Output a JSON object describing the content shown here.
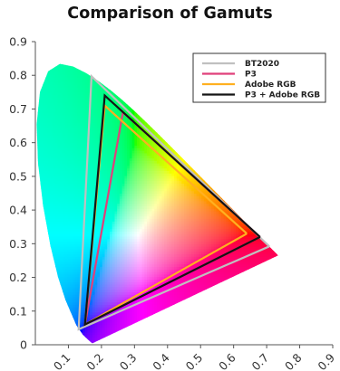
{
  "chart_data": {
    "type": "line",
    "title": "Comparison of Gamuts",
    "xlabel": "",
    "ylabel": "",
    "xlim": [
      0,
      0.9
    ],
    "ylim": [
      0,
      0.9
    ],
    "x_ticks": [
      "0",
      "0.1",
      "0.2",
      "0.3",
      "0.4",
      "0.5",
      "0.6",
      "0.7",
      "0.8",
      "0.9"
    ],
    "y_ticks": [
      "0",
      "0.1",
      "0.2",
      "0.3",
      "0.4",
      "0.5",
      "0.6",
      "0.7",
      "0.8",
      "0.9"
    ],
    "grid": false,
    "legend_position": "top-right",
    "background": "CIE 1931 chromaticity diagram (spectral locus filled with chromaticity colors)",
    "series": [
      {
        "name": "BT2020",
        "color": "#c0c0c0",
        "points": [
          [
            0.708,
            0.292
          ],
          [
            0.17,
            0.797
          ],
          [
            0.131,
            0.046
          ],
          [
            0.708,
            0.292
          ]
        ]
      },
      {
        "name": "P3",
        "color": "#e0407a",
        "points": [
          [
            0.68,
            0.32
          ],
          [
            0.265,
            0.69
          ],
          [
            0.15,
            0.06
          ],
          [
            0.68,
            0.32
          ]
        ]
      },
      {
        "name": "Adobe RGB",
        "color": "#ffb020",
        "points": [
          [
            0.64,
            0.33
          ],
          [
            0.21,
            0.71
          ],
          [
            0.15,
            0.06
          ],
          [
            0.64,
            0.33
          ]
        ]
      },
      {
        "name": "P3 + Adobe RGB",
        "color": "#141414",
        "points": [
          [
            0.68,
            0.32
          ],
          [
            0.21,
            0.74
          ],
          [
            0.15,
            0.06
          ],
          [
            0.68,
            0.32
          ]
        ]
      }
    ]
  }
}
